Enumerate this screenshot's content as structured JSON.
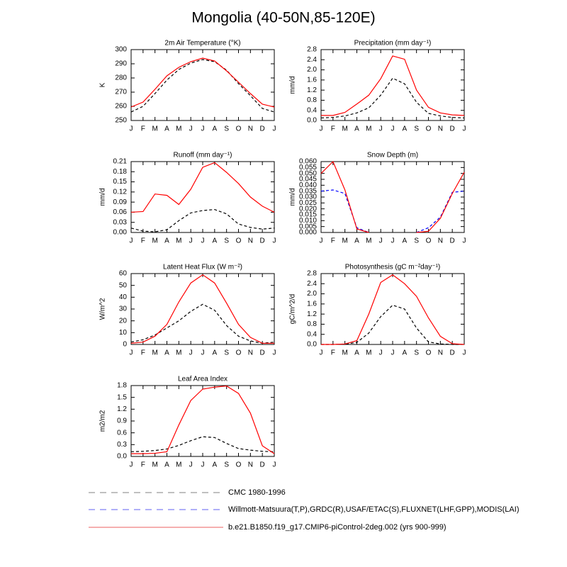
{
  "title": "Mongolia (40-50N,85-120E)",
  "legend": [
    {
      "name": "CMC 1980-1996",
      "color": "#9a9a9a",
      "dash": true
    },
    {
      "name": "Willmott-Matsuura(T,P),GRDC(R),USAF/ETAC(S),FLUXNET(LHF,GPP),MODIS(LAI)",
      "color": "#7f7ff5",
      "dash": true
    },
    {
      "name": "b.e21.B1850.f19_g17.CMIP6-piControl-2deg.002 (yrs 900-999)",
      "color": "#f07f7f",
      "dash": false
    }
  ],
  "chart_data": [
    {
      "type": "line",
      "title": "2m Air Temperature (°K)",
      "ylabel": "K",
      "categories": [
        "J",
        "F",
        "M",
        "A",
        "M",
        "J",
        "J",
        "A",
        "S",
        "O",
        "N",
        "D",
        "J"
      ],
      "series": [
        {
          "color": "#000000",
          "dash": true,
          "values": [
            256,
            260,
            269,
            278.5,
            286,
            290.5,
            293,
            291.5,
            285.5,
            276,
            267.5,
            258.5,
            256
          ]
        },
        {
          "color": "#ff0000",
          "dash": false,
          "values": [
            259.5,
            263,
            272,
            281.5,
            287.5,
            291.5,
            294,
            292,
            285,
            277,
            269,
            261.5,
            259.5
          ]
        }
      ],
      "ylim": [
        250,
        300
      ],
      "yticks": [
        250,
        260,
        270,
        280,
        290,
        300
      ]
    },
    {
      "type": "line",
      "title": "Precipitation (mm day⁻¹)",
      "ylabel": "mm/d",
      "categories": [
        "J",
        "F",
        "M",
        "A",
        "M",
        "J",
        "J",
        "A",
        "S",
        "O",
        "N",
        "D",
        "J"
      ],
      "series": [
        {
          "color": "#000000",
          "dash": true,
          "values": [
            0.1,
            0.12,
            0.18,
            0.3,
            0.5,
            1.0,
            1.67,
            1.45,
            0.72,
            0.28,
            0.18,
            0.12,
            0.1
          ]
        },
        {
          "color": "#ff0000",
          "dash": false,
          "values": [
            0.2,
            0.2,
            0.32,
            0.65,
            1.0,
            1.65,
            2.55,
            2.42,
            1.2,
            0.52,
            0.3,
            0.22,
            0.2
          ]
        }
      ],
      "ylim": [
        0,
        2.8
      ],
      "yticks": [
        {
          "value": 0,
          "label": "0.0"
        },
        0.4,
        0.8,
        1.2,
        1.6,
        {
          "value": 2,
          "label": "2.0"
        },
        2.4,
        2.8
      ]
    },
    {
      "type": "line",
      "title": "Runoff (mm day⁻¹)",
      "ylabel": "mm/d",
      "categories": [
        "J",
        "F",
        "M",
        "A",
        "M",
        "J",
        "J",
        "A",
        "S",
        "O",
        "N",
        "D",
        "J"
      ],
      "series": [
        {
          "color": "#000000",
          "dash": true,
          "values": [
            0.013,
            0.004,
            0.002,
            0.008,
            0.035,
            0.058,
            0.065,
            0.068,
            0.055,
            0.025,
            0.015,
            0.01,
            0.013
          ]
        },
        {
          "color": "#ff0000",
          "dash": false,
          "values": [
            0.06,
            0.062,
            0.114,
            0.11,
            0.083,
            0.128,
            0.193,
            0.207,
            0.178,
            0.145,
            0.105,
            0.078,
            0.06
          ]
        }
      ],
      "ylim": [
        0,
        0.21
      ],
      "yticks": [
        {
          "value": 0,
          "label": "0.00"
        },
        0.03,
        0.06,
        0.09,
        0.12,
        0.15,
        0.18,
        0.21
      ]
    },
    {
      "type": "line",
      "title": "Snow Depth (m)",
      "ylabel": "mm/d",
      "categories": [
        "J",
        "F",
        "M",
        "A",
        "M",
        "J",
        "J",
        "A",
        "S",
        "O",
        "N",
        "D",
        "J"
      ],
      "series": [
        {
          "color": "#0000ff",
          "dash": true,
          "values": [
            0.035,
            0.036,
            0.033,
            0.004,
            0,
            null,
            null,
            null,
            0,
            0.004,
            0.013,
            0.034,
            0.035
          ]
        },
        {
          "color": "#ff0000",
          "dash": false,
          "values": [
            0.05,
            0.06,
            0.036,
            0.003,
            0,
            null,
            null,
            null,
            0,
            0.001,
            0.012,
            0.033,
            0.051
          ]
        }
      ],
      "ylim": [
        0,
        0.06
      ],
      "yticks": [
        {
          "value": 0,
          "label": "0.000"
        },
        0.005,
        {
          "value": 0.01,
          "label": "0.010"
        },
        0.015,
        {
          "value": 0.02,
          "label": "0.020"
        },
        0.025,
        {
          "value": 0.03,
          "label": "0.030"
        },
        0.035,
        {
          "value": 0.04,
          "label": "0.040"
        },
        0.045,
        {
          "value": 0.05,
          "label": "0.050"
        },
        0.055,
        {
          "value": 0.06,
          "label": "0.060"
        }
      ]
    },
    {
      "type": "line",
      "title": "Latent Heat Flux (W m⁻²)",
      "ylabel": "W/m^2",
      "categories": [
        "J",
        "F",
        "M",
        "A",
        "M",
        "J",
        "J",
        "A",
        "S",
        "O",
        "N",
        "D",
        "J"
      ],
      "series": [
        {
          "color": "#000000",
          "dash": true,
          "values": [
            2,
            4,
            8,
            14,
            20,
            28,
            34,
            29,
            16,
            7,
            3,
            1,
            2
          ]
        },
        {
          "color": "#ff0000",
          "dash": false,
          "values": [
            1,
            2,
            7,
            17,
            36,
            52,
            59,
            52,
            35,
            17,
            6,
            1,
            1
          ]
        }
      ],
      "ylim": [
        0,
        60
      ],
      "yticks": [
        0,
        10,
        20,
        30,
        40,
        50,
        60
      ]
    },
    {
      "type": "line",
      "title": "Photosynthesis (gC m⁻²day⁻¹)",
      "ylabel": "gC/m^2/d",
      "categories": [
        "J",
        "F",
        "M",
        "A",
        "M",
        "J",
        "J",
        "A",
        "S",
        "O",
        "N",
        "D",
        "J"
      ],
      "series": [
        {
          "color": "#000000",
          "dash": true,
          "values": [
            0,
            0,
            0.01,
            0.08,
            0.45,
            1.1,
            1.55,
            1.4,
            0.65,
            0.1,
            0.02,
            0,
            0
          ]
        },
        {
          "color": "#ff0000",
          "dash": false,
          "values": [
            0,
            0,
            0.02,
            0.15,
            1.2,
            2.45,
            2.75,
            2.4,
            1.9,
            1.05,
            0.32,
            0.03,
            0
          ]
        }
      ],
      "ylim": [
        0,
        2.8
      ],
      "yticks": [
        {
          "value": 0,
          "label": "0.0"
        },
        0.4,
        0.8,
        1.2,
        1.6,
        {
          "value": 2,
          "label": "2.0"
        },
        2.4,
        2.8
      ]
    },
    {
      "type": "line",
      "title": "Leaf Area Index",
      "ylabel": "m2/m2",
      "categories": [
        "J",
        "F",
        "M",
        "A",
        "M",
        "J",
        "J",
        "A",
        "S",
        "O",
        "N",
        "D",
        "J"
      ],
      "series": [
        {
          "color": "#000000",
          "dash": true,
          "values": [
            0.12,
            0.13,
            0.15,
            0.19,
            0.28,
            0.4,
            0.5,
            0.48,
            0.33,
            0.2,
            0.16,
            0.13,
            0.12
          ]
        },
        {
          "color": "#ff0000",
          "dash": false,
          "values": [
            0.07,
            0.07,
            0.08,
            0.12,
            0.8,
            1.42,
            1.71,
            1.76,
            1.79,
            1.6,
            1.1,
            0.27,
            0.07
          ]
        }
      ],
      "ylim": [
        0,
        1.8
      ],
      "yticks": [
        {
          "value": 0,
          "label": "0.0"
        },
        0.3,
        0.6,
        0.9,
        1.2,
        1.5,
        1.8
      ]
    }
  ]
}
